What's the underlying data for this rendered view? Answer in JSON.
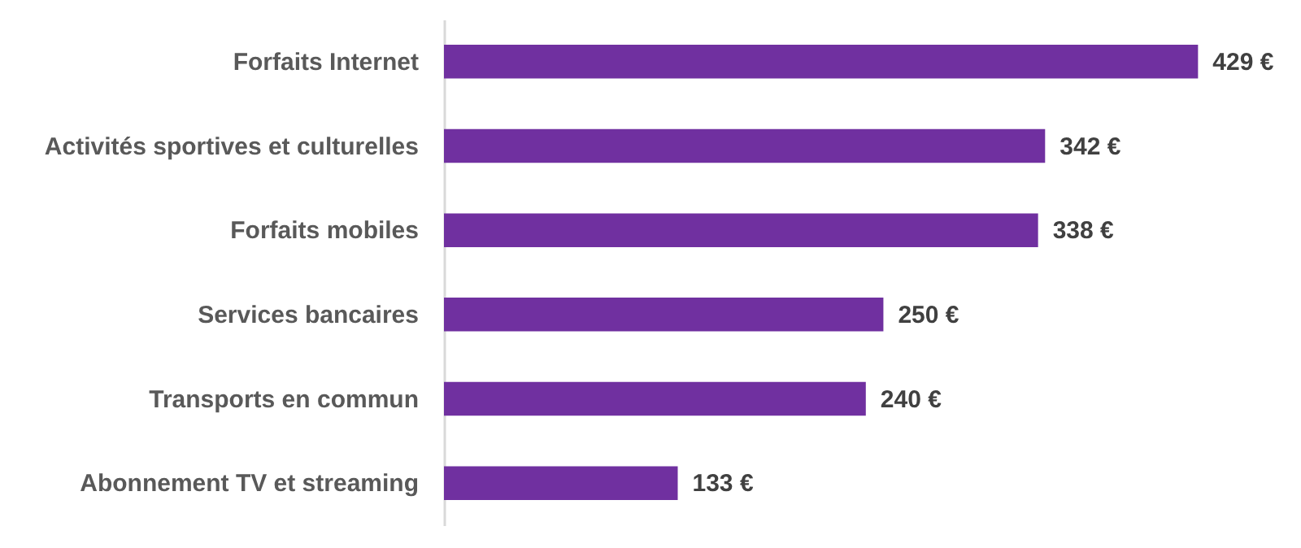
{
  "chart_data": {
    "type": "bar",
    "orientation": "horizontal",
    "categories": [
      "Forfaits Internet",
      "Activités sportives et culturelles",
      "Forfaits mobiles",
      "Services bancaires",
      "Transports en commun",
      "Abonnement TV et streaming"
    ],
    "values": [
      429,
      342,
      338,
      250,
      240,
      133
    ],
    "value_labels": [
      "429 €",
      "342 €",
      "338 €",
      "250 €",
      "240 €",
      "133 €"
    ],
    "color": "#7030a0"
  }
}
